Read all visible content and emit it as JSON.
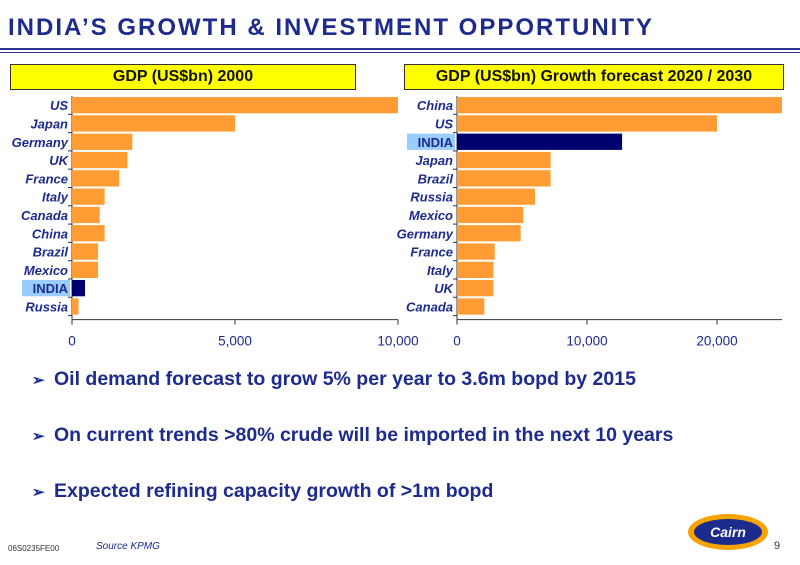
{
  "slide": {
    "title": "INDIA’S GROWTH & INVESTMENT OPPORTUNITY",
    "bullets": [
      "Oil demand forecast to grow 5% per year to 3.6m bopd by 2015",
      "On current trends >80% crude will be imported in the next 10 years",
      "Expected refining capacity growth of >1m bopd"
    ],
    "source": "Source KPMG",
    "doc_code": "06S0235FE00",
    "page_number": "9",
    "logo_text": "Cairn"
  },
  "colors": {
    "title": "#1d2b8c",
    "bar": "#ff9c33",
    "highlight_bar": "#00006e",
    "highlight_label_bg": "#99ccff",
    "header_bg": "#ffff00"
  },
  "chart_data": [
    {
      "type": "bar",
      "orientation": "horizontal",
      "title": "GDP (US$bn) 2000",
      "categories": [
        "US",
        "Japan",
        "Germany",
        "UK",
        "France",
        "Italy",
        "Canada",
        "China",
        "Brazil",
        "Mexico",
        "INDIA",
        "Russia"
      ],
      "values": [
        10000,
        5000,
        1850,
        1700,
        1450,
        1000,
        850,
        1000,
        800,
        800,
        400,
        200
      ],
      "highlight": "INDIA",
      "xlim": [
        0,
        10000
      ],
      "xticks": [
        0,
        5000,
        10000
      ],
      "xtick_labels": [
        "0",
        "5,000",
        "10,000"
      ]
    },
    {
      "type": "bar",
      "orientation": "horizontal",
      "title": "GDP (US$bn) Growth forecast 2020 / 2030",
      "categories": [
        "China",
        "US",
        "INDIA",
        "Japan",
        "Brazil",
        "Russia",
        "Mexico",
        "Germany",
        "France",
        "Italy",
        "UK",
        "Canada"
      ],
      "values": [
        25000,
        20000,
        12700,
        7200,
        7200,
        6000,
        5100,
        4900,
        2900,
        2800,
        2800,
        2100
      ],
      "highlight": "INDIA",
      "xlim": [
        0,
        25000
      ],
      "xticks": [
        0,
        10000,
        20000
      ],
      "xtick_labels": [
        "0",
        "10,000",
        "20,000"
      ]
    }
  ]
}
